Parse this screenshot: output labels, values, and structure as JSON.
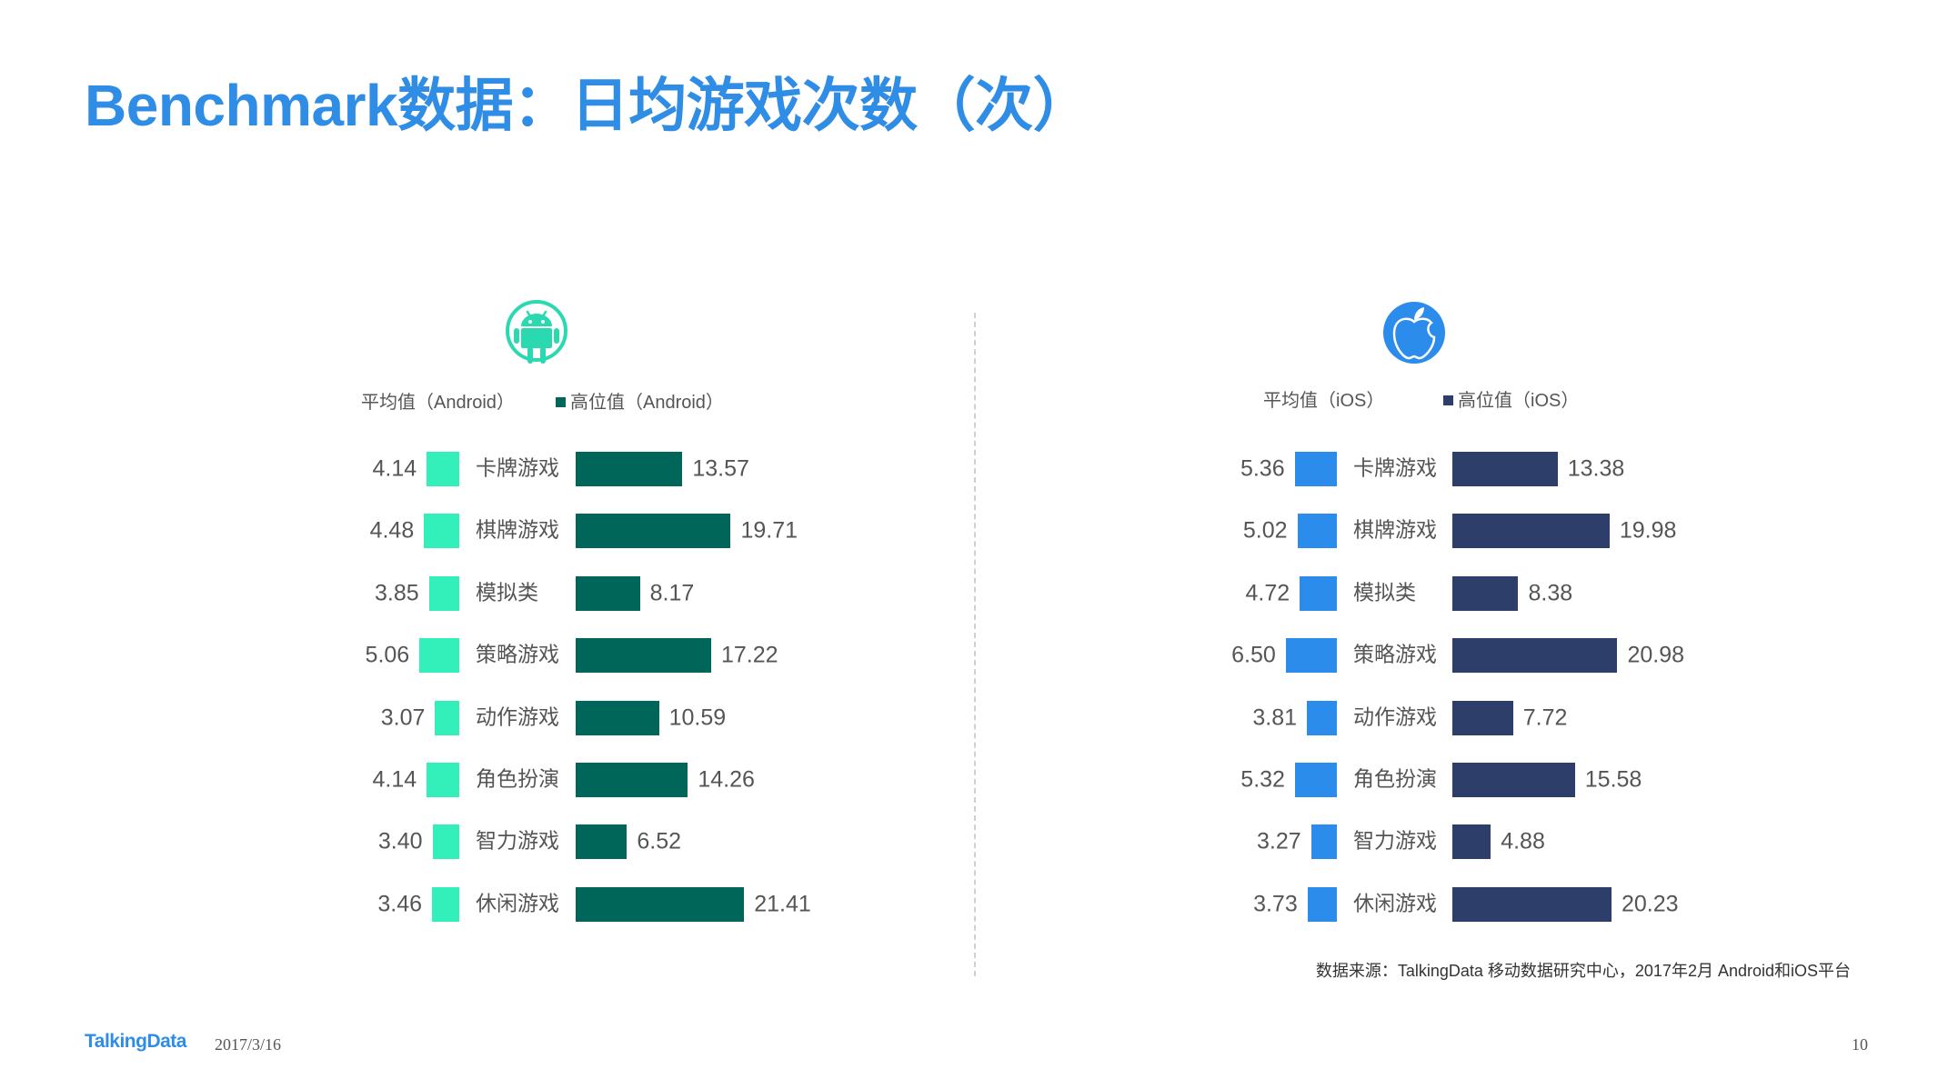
{
  "title": "Benchmark数据：日均游戏次数（次）",
  "colors": {
    "title": "#2f8de6",
    "divider": "#d0d0d0",
    "android_icon": "#2bd9b0",
    "apple_icon": "#2b8ceb"
  },
  "icons": {
    "android": "android-icon",
    "ios": "apple-icon"
  },
  "chart_data": [
    {
      "type": "bar",
      "orientation": "horizontal",
      "categories": [
        "卡牌游戏",
        "棋牌游戏",
        "模拟类",
        "策略游戏",
        "动作游戏",
        "角色扮演",
        "智力游戏",
        "休闲游戏"
      ],
      "series": [
        {
          "name": "平均值（Android）",
          "color": "#33f0bb",
          "values": [
            4.14,
            4.48,
            3.85,
            5.06,
            3.07,
            4.14,
            3.4,
            3.46
          ]
        },
        {
          "name": "高位值（Android）",
          "color": "#00665a",
          "values": [
            13.57,
            19.71,
            8.17,
            17.22,
            10.59,
            14.26,
            6.52,
            21.41
          ]
        }
      ],
      "legend_position": "top",
      "grid": false
    },
    {
      "type": "bar",
      "orientation": "horizontal",
      "categories": [
        "卡牌游戏",
        "棋牌游戏",
        "模拟类",
        "策略游戏",
        "动作游戏",
        "角色扮演",
        "智力游戏",
        "休闲游戏"
      ],
      "series": [
        {
          "name": "平均值（iOS）",
          "color": "#2b8ceb",
          "values": [
            5.36,
            5.02,
            4.72,
            6.5,
            3.81,
            5.32,
            3.27,
            3.73
          ]
        },
        {
          "name": "高位值（iOS）",
          "color": "#2d3e6b",
          "values": [
            13.38,
            19.98,
            8.38,
            20.98,
            7.72,
            15.58,
            4.88,
            20.23
          ]
        }
      ],
      "legend_position": "top",
      "grid": false
    }
  ],
  "source_note": "数据来源：TalkingData 移动数据研究中心，2017年2月 Android和iOS平台",
  "footer": {
    "logo": "TalkingData",
    "date": "2017/3/16",
    "page": "10"
  }
}
